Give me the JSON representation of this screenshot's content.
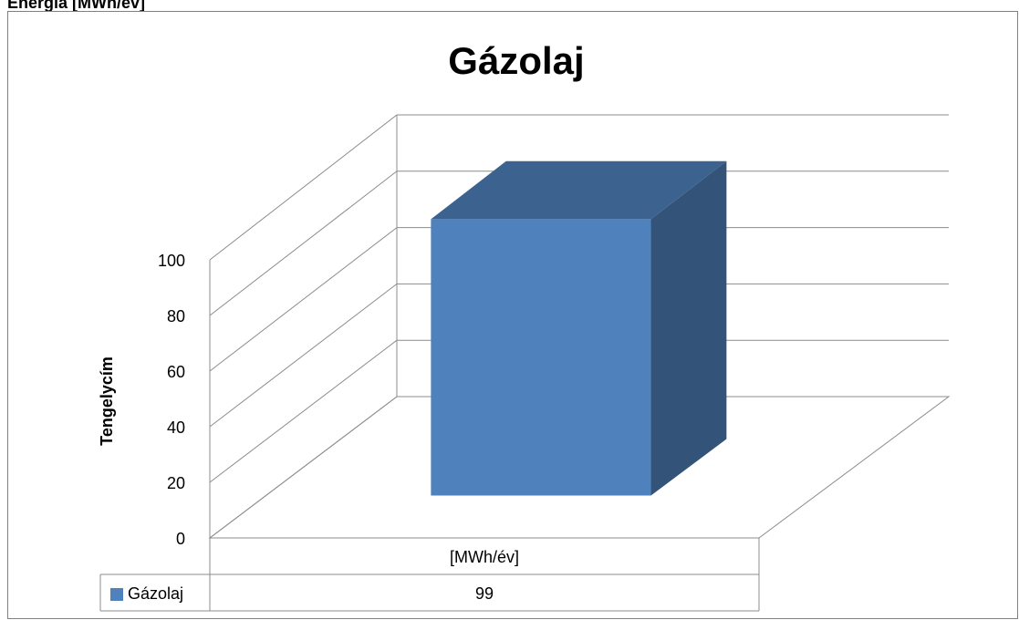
{
  "heading": "Energia [MWh/év]",
  "chart_data": {
    "type": "bar3d",
    "title": "Gázolaj",
    "y_label": "Tengelycím",
    "categories": [
      "[MWh/év]"
    ],
    "series": [
      {
        "name": "Gázolaj",
        "color": "#4f81bd",
        "values": [
          99
        ]
      }
    ],
    "ylim": [
      0,
      100
    ],
    "yticks": [
      0,
      20,
      40,
      60,
      80,
      100
    ],
    "grid": true
  }
}
